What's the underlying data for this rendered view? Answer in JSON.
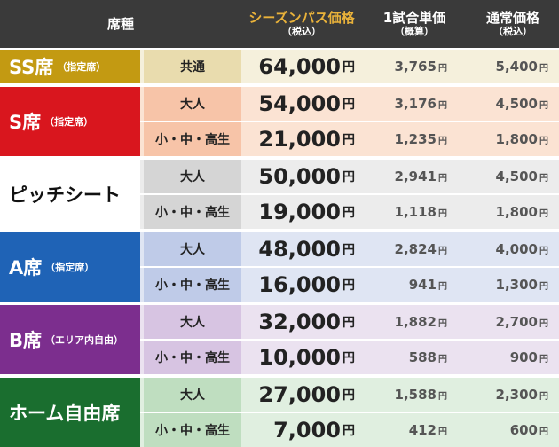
{
  "header": {
    "seat": "席種",
    "season": "シーズンパス価格",
    "season_sub": "（税込）",
    "per": "1試合単価",
    "per_sub": "（概算）",
    "regular": "通常価格",
    "regular_sub": "（税込）"
  },
  "yen": "円",
  "sections": [
    {
      "name": "SS席",
      "note": "（指定席）",
      "color": "#c39a12",
      "rows": [
        {
          "cat": "共通",
          "season": "64,000",
          "per": "3,765",
          "regular": "5,400",
          "bg_cat": "#e9dcae",
          "bg": "#f5f0dc"
        }
      ]
    },
    {
      "name": "S席",
      "note": "（指定席）",
      "color": "#d9161e",
      "rows": [
        {
          "cat": "大人",
          "season": "54,000",
          "per": "3,176",
          "regular": "4,500",
          "bg_cat": "#f7c4a8",
          "bg": "#fbe3d3"
        },
        {
          "cat": "小・中・高生",
          "season": "21,000",
          "per": "1,235",
          "regular": "1,800",
          "bg_cat": "#f7c4a8",
          "bg": "#fbe3d3"
        }
      ]
    },
    {
      "name": "ピッチシート",
      "note": "",
      "color": "#ffffff",
      "rows": [
        {
          "cat": "大人",
          "season": "50,000",
          "per": "2,941",
          "regular": "4,500",
          "bg_cat": "#d5d5d5",
          "bg": "#ececec"
        },
        {
          "cat": "小・中・高生",
          "season": "19,000",
          "per": "1,118",
          "regular": "1,800",
          "bg_cat": "#d5d5d5",
          "bg": "#ececec"
        }
      ]
    },
    {
      "name": "A席",
      "note": "（指定席）",
      "color": "#1f63b6",
      "rows": [
        {
          "cat": "大人",
          "season": "48,000",
          "per": "2,824",
          "regular": "4,000",
          "bg_cat": "#bfcbe8",
          "bg": "#dfe5f3"
        },
        {
          "cat": "小・中・高生",
          "season": "16,000",
          "per": "941",
          "regular": "1,300",
          "bg_cat": "#bfcbe8",
          "bg": "#dfe5f3"
        }
      ]
    },
    {
      "name": "B席",
      "note": "（エリア内自由）",
      "color": "#7c2e8e",
      "rows": [
        {
          "cat": "大人",
          "season": "32,000",
          "per": "1,882",
          "regular": "2,700",
          "bg_cat": "#d7c4e2",
          "bg": "#ebe2f0"
        },
        {
          "cat": "小・中・高生",
          "season": "10,000",
          "per": "588",
          "regular": "900",
          "bg_cat": "#d7c4e2",
          "bg": "#ebe2f0"
        }
      ]
    },
    {
      "name": "ホーム自由席",
      "note": "",
      "color": "#1a6e2f",
      "rows": [
        {
          "cat": "大人",
          "season": "27,000",
          "per": "1,588",
          "regular": "2,300",
          "bg_cat": "#bfdec0",
          "bg": "#e0efe0"
        },
        {
          "cat": "小・中・高生",
          "season": "7,000",
          "per": "412",
          "regular": "600",
          "bg_cat": "#bfdec0",
          "bg": "#e0efe0"
        }
      ]
    }
  ]
}
